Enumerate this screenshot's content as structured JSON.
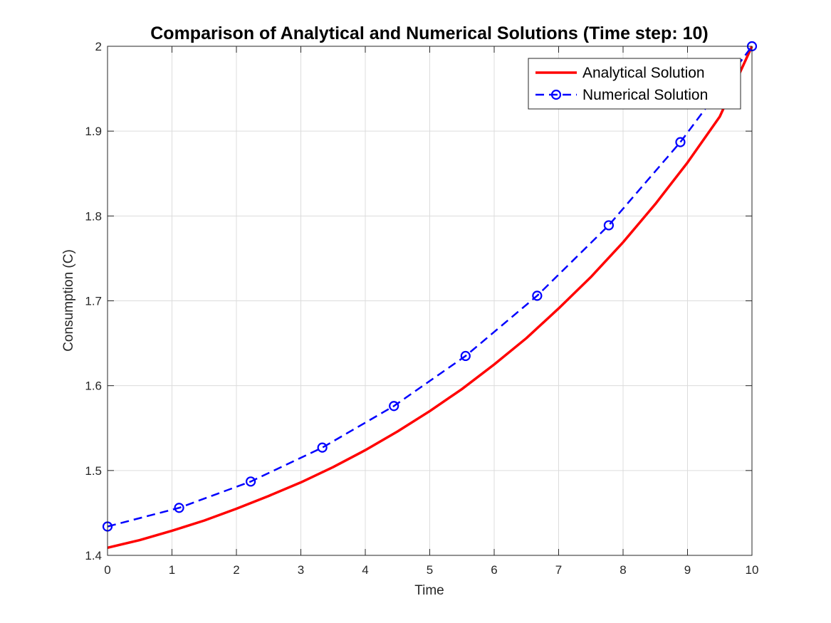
{
  "chart_data": {
    "type": "line",
    "title": "Comparison of Analytical and Numerical Solutions (Time step: 10)",
    "xlabel": "Time",
    "ylabel": "Consumption (C)",
    "xlim": [
      0,
      10
    ],
    "ylim": [
      1.4,
      2.0
    ],
    "xticks": [
      0,
      1,
      2,
      3,
      4,
      5,
      6,
      7,
      8,
      9,
      10
    ],
    "xtick_labels": [
      "0",
      "1",
      "2",
      "3",
      "4",
      "5",
      "6",
      "7",
      "8",
      "9",
      "10"
    ],
    "yticks": [
      1.4,
      1.5,
      1.6,
      1.7,
      1.8,
      1.9,
      2.0
    ],
    "ytick_labels": [
      "1.4",
      "1.5",
      "1.6",
      "1.7",
      "1.8",
      "1.9",
      "2"
    ],
    "grid": true,
    "legend_position": "top-right",
    "series": [
      {
        "name": "Analytical Solution",
        "color": "#ff0000",
        "style": "solid",
        "marker": "none",
        "x": [
          0,
          0.5,
          1,
          1.5,
          2,
          2.5,
          3,
          3.5,
          4,
          4.5,
          5,
          5.5,
          6,
          6.5,
          7,
          7.5,
          8,
          8.5,
          9,
          9.5,
          10
        ],
        "y": [
          1.409,
          1.418,
          1.429,
          1.441,
          1.455,
          1.47,
          1.486,
          1.504,
          1.524,
          1.546,
          1.57,
          1.596,
          1.625,
          1.656,
          1.691,
          1.728,
          1.769,
          1.814,
          1.863,
          1.917,
          2.0
        ]
      },
      {
        "name": "Numerical Solution",
        "color": "#0000ff",
        "style": "dashed",
        "marker": "circle",
        "x": [
          0,
          1.111,
          2.222,
          3.333,
          4.444,
          5.556,
          6.667,
          7.778,
          8.889,
          10
        ],
        "y": [
          1.434,
          1.456,
          1.487,
          1.527,
          1.576,
          1.635,
          1.706,
          1.789,
          1.887,
          2.0
        ]
      }
    ]
  }
}
